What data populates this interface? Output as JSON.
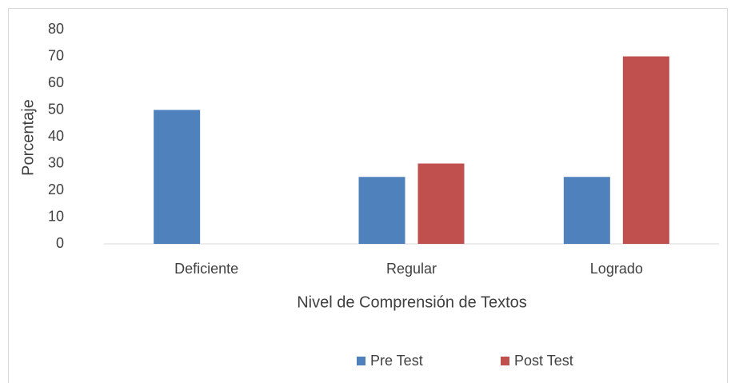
{
  "chart_data": {
    "type": "bar",
    "categories": [
      "Deficiente",
      "Regular",
      "Logrado"
    ],
    "series": [
      {
        "name": "Pre Test",
        "color": "#4f81bd",
        "values": [
          50,
          25,
          25
        ]
      },
      {
        "name": "Post Test",
        "color": "#c0504d",
        "values": [
          0,
          30,
          70
        ]
      }
    ],
    "x_label": "Nivel de Comprensión de Textos",
    "y_label": "Porcentaje",
    "ylim": [
      0,
      80
    ],
    "yticks": [
      0,
      10,
      20,
      30,
      40,
      50,
      60,
      70,
      80
    ],
    "grid": false,
    "legend": "bottom"
  }
}
